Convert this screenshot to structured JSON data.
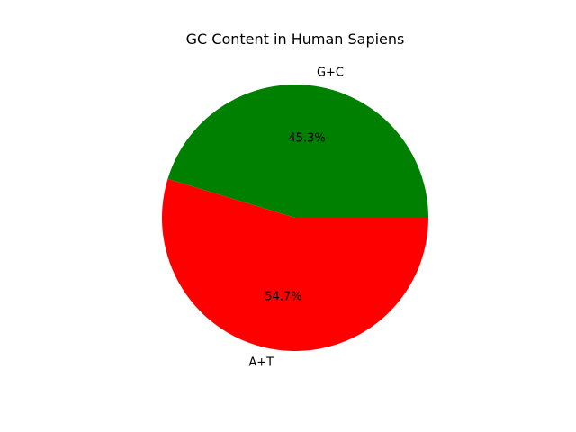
{
  "chart_data": {
    "type": "pie",
    "title": "GC Content in Human Sapiens",
    "labels": [
      "G+C",
      "A+T"
    ],
    "values": [
      45.3,
      54.7
    ],
    "percent_labels": [
      "45.3%",
      "54.7%"
    ],
    "colors": [
      "#008000",
      "#ff0000"
    ],
    "start_angle_deg": 0,
    "direction": "counterclockwise"
  }
}
